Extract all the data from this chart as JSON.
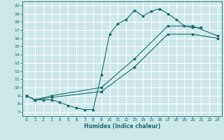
{
  "xlabel": "Humidex (Indice chaleur)",
  "ylabel": "",
  "bg_color": "#cce8e8",
  "line_color": "#1a6b6b",
  "grid_color": "#b8d8d8",
  "xlim": [
    -0.5,
    23.5
  ],
  "ylim": [
    6.5,
    20.5
  ],
  "xticks": [
    0,
    1,
    2,
    3,
    4,
    5,
    6,
    7,
    8,
    9,
    10,
    11,
    12,
    13,
    14,
    15,
    16,
    17,
    18,
    19,
    20,
    21,
    22,
    23
  ],
  "yticks": [
    7,
    8,
    9,
    10,
    11,
    12,
    13,
    14,
    15,
    16,
    17,
    18,
    19,
    20
  ],
  "curve1_x": [
    0,
    1,
    2,
    3,
    4,
    5,
    6,
    7,
    8,
    9,
    10,
    11,
    12,
    13,
    14,
    15,
    16,
    17,
    18,
    19,
    20,
    21
  ],
  "curve1_y": [
    9.0,
    8.5,
    8.5,
    8.5,
    8.2,
    7.8,
    7.5,
    7.3,
    7.3,
    11.5,
    16.5,
    17.8,
    18.3,
    19.4,
    18.7,
    19.3,
    19.6,
    19.0,
    18.3,
    17.5,
    17.3,
    17.3
  ],
  "curve2_x": [
    0,
    1,
    3,
    9,
    13,
    17,
    20,
    23
  ],
  "curve2_y": [
    9.0,
    8.5,
    9.0,
    10.0,
    13.5,
    17.5,
    17.5,
    16.3
  ],
  "curve3_x": [
    0,
    1,
    3,
    9,
    13,
    17,
    20,
    23
  ],
  "curve3_y": [
    9.0,
    8.5,
    8.8,
    9.5,
    12.5,
    16.5,
    16.5,
    16.0
  ]
}
